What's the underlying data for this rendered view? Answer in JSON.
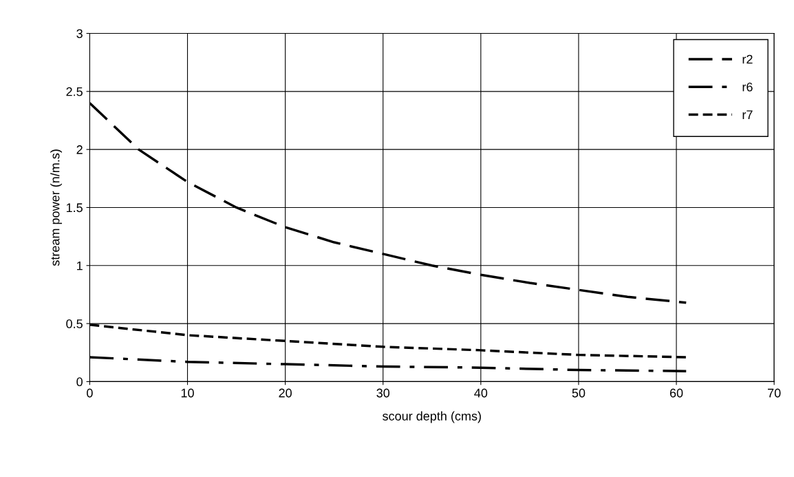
{
  "chart_data": {
    "type": "line",
    "xlabel": "scour depth (cms)",
    "ylabel": "stream power (n/m.s)",
    "xlim": [
      0,
      70
    ],
    "xticks": [
      0,
      10,
      20,
      30,
      40,
      50,
      60,
      70
    ],
    "ylim": [
      0,
      3
    ],
    "yticks": [
      0,
      0.5,
      1,
      1.5,
      2,
      2.5,
      3
    ],
    "grid": true,
    "legend": "top right",
    "marker": "none",
    "series": [
      {
        "name": "r2",
        "color": "#000000",
        "line_style": "dashed",
        "x": [
          0,
          5,
          10,
          15,
          20,
          25,
          30,
          35,
          40,
          45,
          50,
          55,
          61
        ],
        "values": [
          2.4,
          2.0,
          1.72,
          1.5,
          1.33,
          1.2,
          1.1,
          1.0,
          0.92,
          0.85,
          0.79,
          0.73,
          0.68
        ]
      },
      {
        "name": "r6",
        "color": "#000000",
        "line_style": "dashdot",
        "x": [
          0,
          10,
          20,
          30,
          40,
          50,
          61
        ],
        "values": [
          0.21,
          0.17,
          0.15,
          0.13,
          0.12,
          0.1,
          0.09
        ]
      },
      {
        "name": "r7",
        "color": "#000000",
        "line_style": "dotted",
        "x": [
          0,
          10,
          20,
          30,
          40,
          50,
          61
        ],
        "values": [
          0.49,
          0.4,
          0.35,
          0.3,
          0.27,
          0.23,
          0.21
        ]
      }
    ]
  }
}
